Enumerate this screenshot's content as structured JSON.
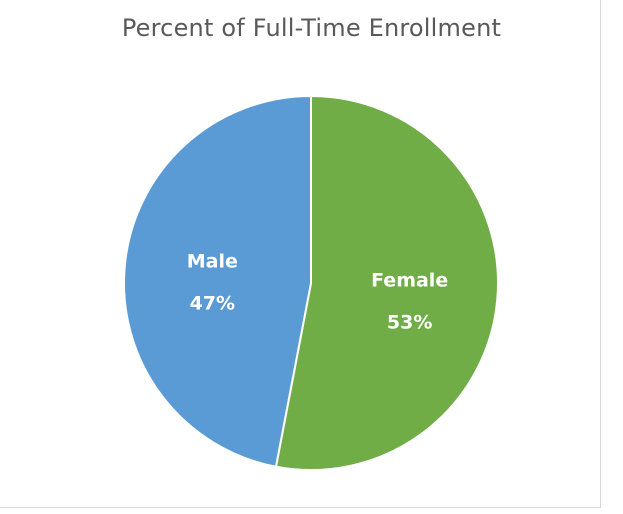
{
  "chart_data": {
    "type": "pie",
    "title": "Percent of Full-Time Enrollment",
    "categories": [
      "Female",
      "Male"
    ],
    "values": [
      53,
      47
    ],
    "value_labels": [
      "53%",
      "47%"
    ],
    "colors": [
      "#70ad47",
      "#5b9bd5"
    ],
    "start_angle_deg": 0,
    "direction": "clockwise",
    "legend": "none",
    "data_labels": "inside"
  }
}
